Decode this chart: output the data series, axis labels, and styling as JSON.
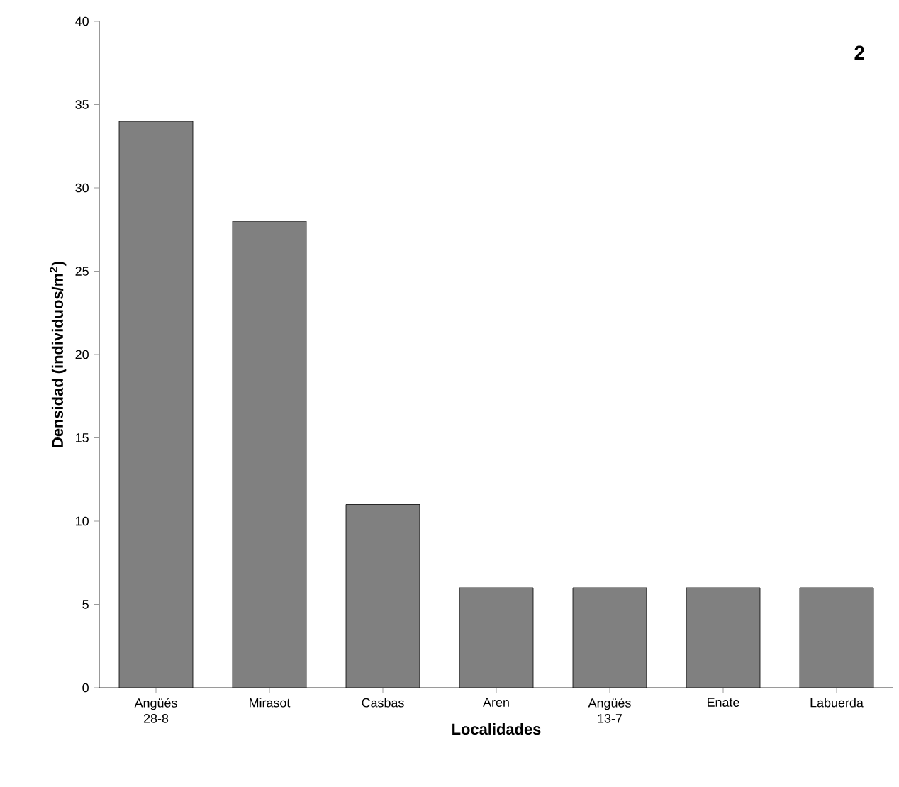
{
  "chart_data": {
    "type": "bar",
    "xlabel": "Localidades",
    "ylabel": "Densidad (individuos/m$^{2}$)",
    "categories": [
      "Angüés 28-8",
      "Mirasot",
      "Casbas",
      "Aren",
      "Angüés 13-7",
      "Enate",
      "Labuerda"
    ],
    "values": [
      34,
      28,
      11,
      6,
      6,
      6,
      6
    ],
    "color": "#808080",
    "ylim": [
      0,
      40
    ],
    "yticks": [
      0,
      5,
      10,
      15,
      20,
      25,
      30,
      35,
      40
    ],
    "grid": false,
    "annotations": [
      "2"
    ]
  }
}
